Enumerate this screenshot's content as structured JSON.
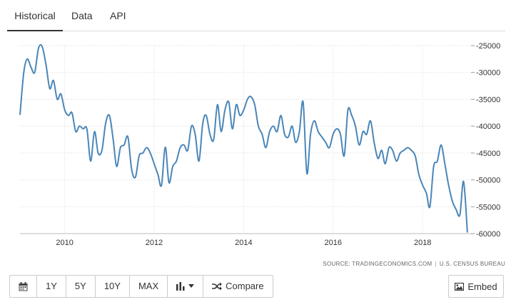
{
  "tabs": [
    {
      "label": "Historical",
      "active": true
    },
    {
      "label": "Data",
      "active": false
    },
    {
      "label": "API",
      "active": false
    }
  ],
  "source": {
    "left": "SOURCE: TRADINGECONOMICS.COM",
    "separator": "|",
    "right": "U.S. CENSUS BUREAU"
  },
  "toolbar": {
    "range_buttons": [
      "1Y",
      "5Y",
      "10Y",
      "MAX"
    ],
    "compare_label": "Compare",
    "embed_label": "Embed"
  },
  "icons": {
    "calendar": "calendar-icon",
    "chart_type": "bar-chart-icon",
    "compare": "shuffle-icon",
    "embed": "image-icon"
  },
  "colors": {
    "line": "#4a86b8",
    "grid": "#d8d8d8"
  },
  "chart_data": {
    "type": "line",
    "title": "",
    "xlabel": "",
    "ylabel": "",
    "ylim": [
      -60000,
      -25000
    ],
    "yticks": [
      -25000,
      -30000,
      -35000,
      -40000,
      -45000,
      -50000,
      -55000,
      -60000
    ],
    "xticks": [
      "2010",
      "2012",
      "2014",
      "2016",
      "2018"
    ],
    "grid": true,
    "y_axis_position": "right",
    "series": [
      {
        "values": [
          [
            "2009-01",
            -37900
          ],
          [
            "2009-02",
            -30000
          ],
          [
            "2009-03",
            -27500
          ],
          [
            "2009-04",
            -29000
          ],
          [
            "2009-05",
            -30000
          ],
          [
            "2009-06",
            -25500
          ],
          [
            "2009-07",
            -25200
          ],
          [
            "2009-08",
            -28500
          ],
          [
            "2009-09",
            -33000
          ],
          [
            "2009-10",
            -31500
          ],
          [
            "2009-11",
            -35000
          ],
          [
            "2009-12",
            -34000
          ],
          [
            "2010-01",
            -37000
          ],
          [
            "2010-02",
            -38000
          ],
          [
            "2010-03",
            -37500
          ],
          [
            "2010-04",
            -41000
          ],
          [
            "2010-05",
            -40000
          ],
          [
            "2010-06",
            -40500
          ],
          [
            "2010-07",
            -40500
          ],
          [
            "2010-08",
            -46500
          ],
          [
            "2010-09",
            -41000
          ],
          [
            "2010-10",
            -45000
          ],
          [
            "2010-11",
            -44500
          ],
          [
            "2010-12",
            -39500
          ],
          [
            "2011-01",
            -38000
          ],
          [
            "2011-02",
            -42500
          ],
          [
            "2011-03",
            -47500
          ],
          [
            "2011-04",
            -44000
          ],
          [
            "2011-05",
            -43500
          ],
          [
            "2011-06",
            -42000
          ],
          [
            "2011-07",
            -48000
          ],
          [
            "2011-08",
            -49500
          ],
          [
            "2011-09",
            -45500
          ],
          [
            "2011-10",
            -45000
          ],
          [
            "2011-11",
            -44000
          ],
          [
            "2011-12",
            -45000
          ],
          [
            "2012-01",
            -47000
          ],
          [
            "2012-02",
            -49000
          ],
          [
            "2012-03",
            -51000
          ],
          [
            "2012-04",
            -43900
          ],
          [
            "2012-05",
            -50500
          ],
          [
            "2012-06",
            -47500
          ],
          [
            "2012-07",
            -46500
          ],
          [
            "2012-08",
            -44000
          ],
          [
            "2012-09",
            -43500
          ],
          [
            "2012-10",
            -44500
          ],
          [
            "2012-11",
            -40000
          ],
          [
            "2012-12",
            -41500
          ],
          [
            "2013-01",
            -46500
          ],
          [
            "2013-02",
            -39500
          ],
          [
            "2013-03",
            -38000
          ],
          [
            "2013-04",
            -41500
          ],
          [
            "2013-05",
            -42500
          ],
          [
            "2013-06",
            -36000
          ],
          [
            "2013-07",
            -41000
          ],
          [
            "2013-08",
            -37000
          ],
          [
            "2013-09",
            -35500
          ],
          [
            "2013-10",
            -40500
          ],
          [
            "2013-11",
            -36000
          ],
          [
            "2013-12",
            -38000
          ],
          [
            "2014-01",
            -37000
          ],
          [
            "2014-02",
            -35000
          ],
          [
            "2014-03",
            -34500
          ],
          [
            "2014-04",
            -36000
          ],
          [
            "2014-05",
            -40000
          ],
          [
            "2014-06",
            -41500
          ],
          [
            "2014-07",
            -44000
          ],
          [
            "2014-08",
            -41000
          ],
          [
            "2014-09",
            -40000
          ],
          [
            "2014-10",
            -41000
          ],
          [
            "2014-11",
            -38000
          ],
          [
            "2014-12",
            -41500
          ],
          [
            "2015-01",
            -42000
          ],
          [
            "2015-02",
            -40000
          ],
          [
            "2015-03",
            -43000
          ],
          [
            "2015-04",
            -41000
          ],
          [
            "2015-05",
            -35500
          ],
          [
            "2015-06",
            -48800
          ],
          [
            "2015-07",
            -41500
          ],
          [
            "2015-08",
            -39000
          ],
          [
            "2015-09",
            -41000
          ],
          [
            "2015-10",
            -42000
          ],
          [
            "2015-11",
            -43000
          ],
          [
            "2015-12",
            -44000
          ],
          [
            "2016-01",
            -41500
          ],
          [
            "2016-02",
            -40500
          ],
          [
            "2016-03",
            -41500
          ],
          [
            "2016-04",
            -45500
          ],
          [
            "2016-05",
            -37000
          ],
          [
            "2016-06",
            -38000
          ],
          [
            "2016-07",
            -40000
          ],
          [
            "2016-08",
            -43500
          ],
          [
            "2016-09",
            -41000
          ],
          [
            "2016-10",
            -41500
          ],
          [
            "2016-11",
            -39000
          ],
          [
            "2016-12",
            -43000
          ],
          [
            "2017-01",
            -46000
          ],
          [
            "2017-02",
            -44500
          ],
          [
            "2017-03",
            -47000
          ],
          [
            "2017-04",
            -44000
          ],
          [
            "2017-05",
            -44500
          ],
          [
            "2017-06",
            -46500
          ],
          [
            "2017-07",
            -45000
          ],
          [
            "2017-08",
            -44500
          ],
          [
            "2017-09",
            -44000
          ],
          [
            "2017-10",
            -44500
          ],
          [
            "2017-11",
            -45500
          ],
          [
            "2017-12",
            -49000
          ],
          [
            "2018-01",
            -51000
          ],
          [
            "2018-02",
            -52500
          ],
          [
            "2018-03",
            -55000
          ],
          [
            "2018-04",
            -47500
          ],
          [
            "2018-05",
            -46500
          ],
          [
            "2018-06",
            -43500
          ],
          [
            "2018-07",
            -47000
          ],
          [
            "2018-08",
            -51000
          ],
          [
            "2018-09",
            -54000
          ],
          [
            "2018-10",
            -55500
          ],
          [
            "2018-11",
            -56500
          ],
          [
            "2018-12",
            -50300
          ],
          [
            "2019-01",
            -59800
          ]
        ]
      }
    ]
  }
}
